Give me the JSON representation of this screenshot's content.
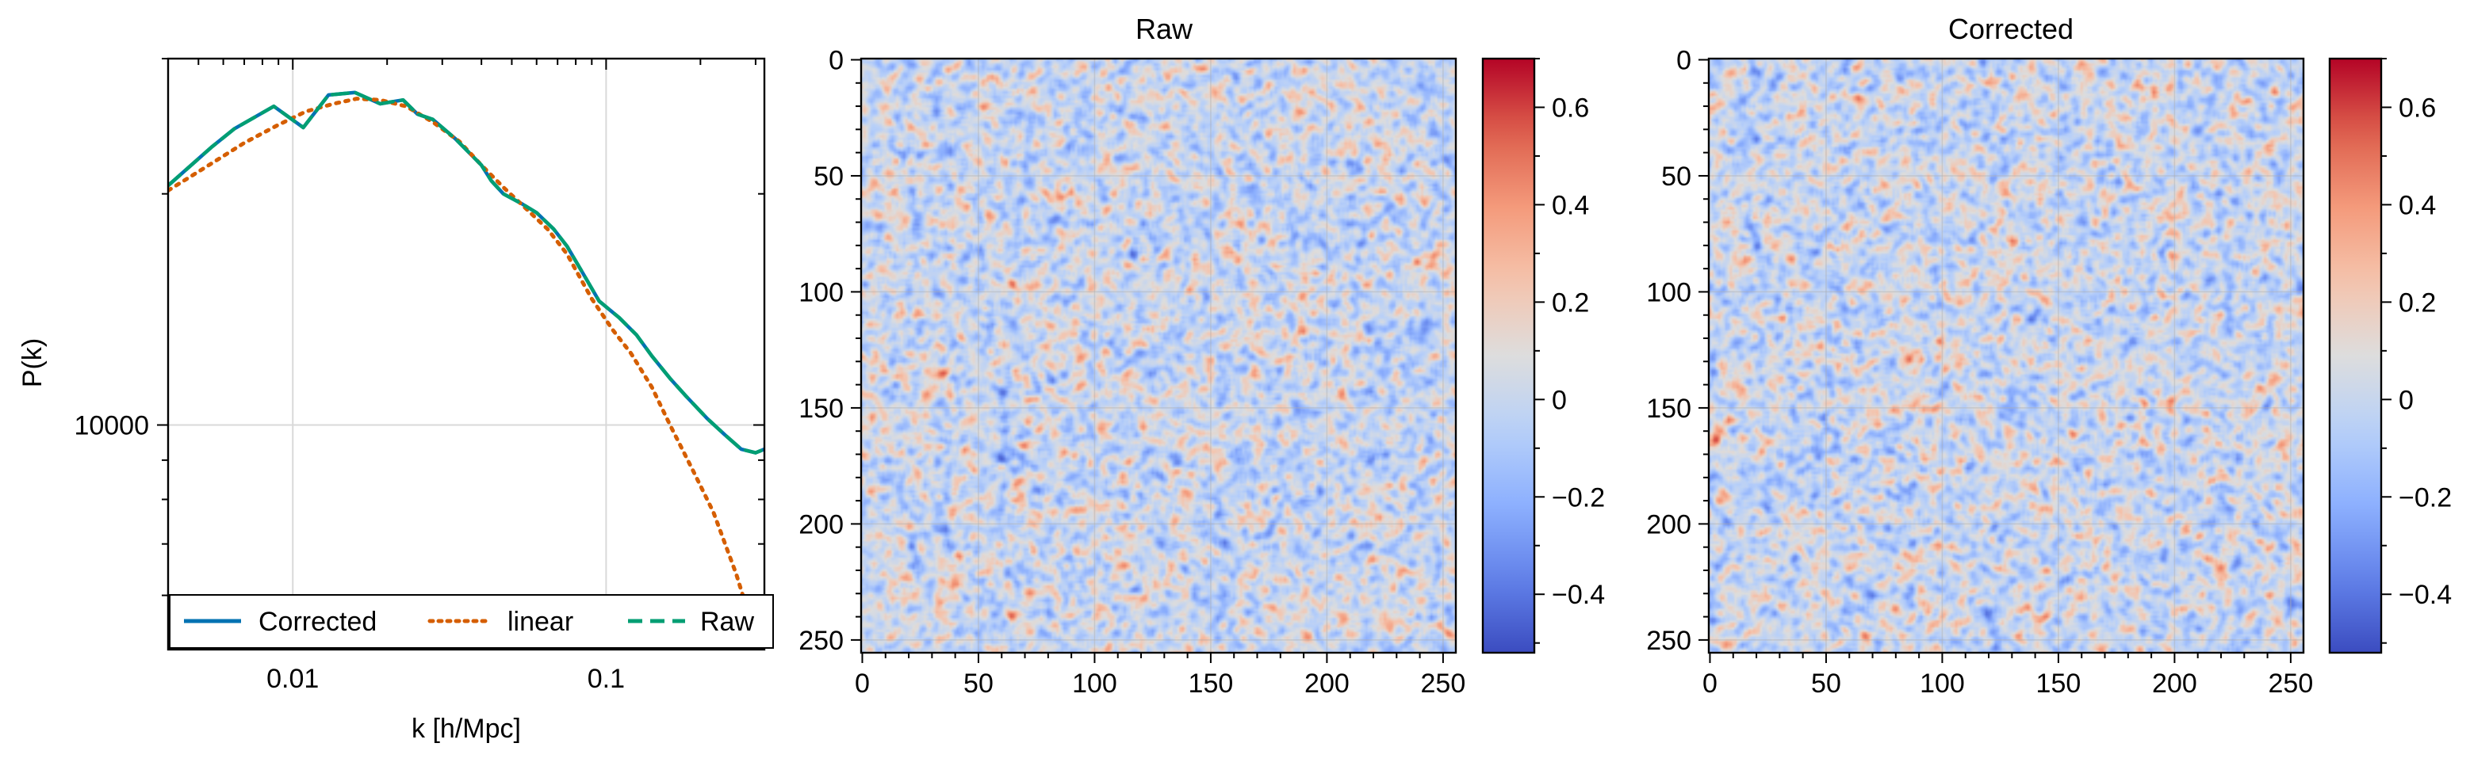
{
  "chart_data": [
    {
      "type": "line",
      "title": "",
      "xlabel": "k [h/Mpc]",
      "ylabel": "P(k)",
      "xscale": "log",
      "yscale": "log",
      "xlim": [
        0.004,
        0.32
      ],
      "ylim": [
        5100,
        30000
      ],
      "grid": true,
      "x_ticks": [
        {
          "value": 0.01,
          "label": "0.01"
        },
        {
          "value": 0.1,
          "label": "0.1"
        }
      ],
      "y_ticks": [
        {
          "value": 10000,
          "label": "10000"
        }
      ],
      "legend": {
        "placement": "bottom",
        "columns": 3
      },
      "series": [
        {
          "name": "Corrected",
          "color": "#0072b2",
          "style": "solid",
          "x": [
            0.004,
            0.0055,
            0.0065,
            0.0087,
            0.0108,
            0.013,
            0.0158,
            0.019,
            0.0225,
            0.025,
            0.028,
            0.033,
            0.04,
            0.043,
            0.047,
            0.054,
            0.06,
            0.068,
            0.075,
            0.084,
            0.095,
            0.11,
            0.125,
            0.14,
            0.16,
            0.18,
            0.21,
            0.24,
            0.27,
            0.3,
            0.32
          ],
          "y": [
            20500,
            23000,
            24300,
            26000,
            24400,
            26900,
            27100,
            26200,
            26500,
            25400,
            25000,
            23600,
            21800,
            20800,
            20000,
            19400,
            18900,
            18000,
            17100,
            15800,
            14500,
            13800,
            13100,
            12300,
            11500,
            10900,
            10200,
            9700,
            9300,
            9200,
            9300
          ]
        },
        {
          "name": "linear",
          "color": "#d55e00",
          "style": "dotted",
          "x": [
            0.004,
            0.0055,
            0.007,
            0.009,
            0.011,
            0.0135,
            0.016,
            0.019,
            0.023,
            0.028,
            0.034,
            0.04,
            0.047,
            0.055,
            0.065,
            0.075,
            0.09,
            0.105,
            0.12,
            0.14,
            0.16,
            0.19,
            0.22,
            0.26,
            0.3,
            0.32
          ],
          "y": [
            20200,
            21900,
            23300,
            24600,
            25600,
            26200,
            26600,
            26500,
            26000,
            24800,
            23400,
            21800,
            20400,
            19200,
            18000,
            16700,
            14600,
            13300,
            12400,
            11200,
            10000,
            8700,
            7700,
            6400,
            5300,
            4800
          ]
        },
        {
          "name": "Raw",
          "color": "#009e73",
          "style": "dashed",
          "x": [
            0.004,
            0.0055,
            0.0065,
            0.0087,
            0.0108,
            0.013,
            0.0158,
            0.019,
            0.0225,
            0.025,
            0.028,
            0.033,
            0.04,
            0.043,
            0.047,
            0.054,
            0.06,
            0.068,
            0.075,
            0.084,
            0.095,
            0.11,
            0.125,
            0.14,
            0.16,
            0.18,
            0.21,
            0.24,
            0.27,
            0.3,
            0.32
          ],
          "y": [
            20500,
            23000,
            24300,
            26000,
            24400,
            26900,
            27100,
            26200,
            26500,
            25400,
            25000,
            23600,
            21800,
            20800,
            20000,
            19400,
            18900,
            18000,
            17100,
            15800,
            14500,
            13800,
            13100,
            12300,
            11500,
            10900,
            10200,
            9700,
            9300,
            9200,
            9300
          ]
        }
      ]
    },
    {
      "type": "heatmap",
      "title": "Raw",
      "xlabel": "",
      "ylabel": "",
      "grid_size": 256,
      "seed": 11,
      "xlim": [
        0,
        256
      ],
      "ylim": [
        256,
        0
      ],
      "x_ticks": [
        "0",
        "50",
        "100",
        "150",
        "200",
        "250"
      ],
      "y_ticks": [
        "0",
        "50",
        "100",
        "150",
        "200",
        "250"
      ],
      "colormap": "coolwarm",
      "colorbar": {
        "vmin": -0.52,
        "vmax": 0.7,
        "ticks": [
          {
            "value": -0.4,
            "label": "−0.4"
          },
          {
            "value": -0.2,
            "label": "−0.2"
          },
          {
            "value": 0,
            "label": "0"
          },
          {
            "value": 0.2,
            "label": "0.2"
          },
          {
            "value": 0.4,
            "label": "0.4"
          },
          {
            "value": 0.6,
            "label": "0.6"
          }
        ]
      }
    },
    {
      "type": "heatmap",
      "title": "Corrected",
      "xlabel": "",
      "ylabel": "",
      "grid_size": 256,
      "seed": 23,
      "xlim": [
        0,
        256
      ],
      "ylim": [
        256,
        0
      ],
      "x_ticks": [
        "0",
        "50",
        "100",
        "150",
        "200",
        "250"
      ],
      "y_ticks": [
        "0",
        "50",
        "100",
        "150",
        "200",
        "250"
      ],
      "colormap": "coolwarm",
      "colorbar": {
        "vmin": -0.52,
        "vmax": 0.7,
        "ticks": [
          {
            "value": -0.4,
            "label": "−0.4"
          },
          {
            "value": -0.2,
            "label": "−0.2"
          },
          {
            "value": 0,
            "label": "0"
          },
          {
            "value": 0.2,
            "label": "0.2"
          },
          {
            "value": 0.4,
            "label": "0.4"
          },
          {
            "value": 0.6,
            "label": "0.6"
          }
        ]
      }
    }
  ]
}
